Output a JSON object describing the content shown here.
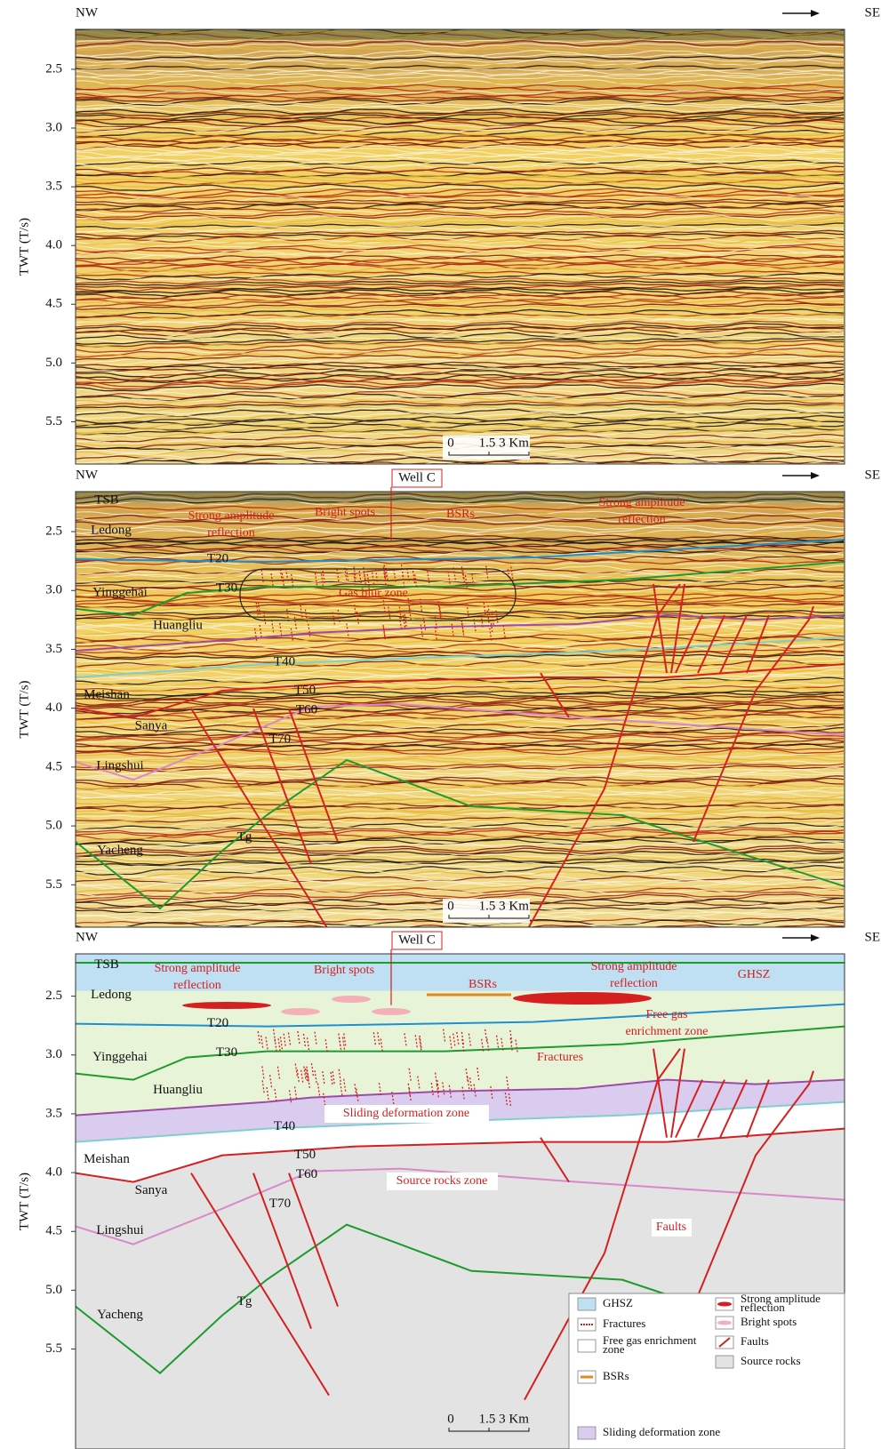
{
  "panels": [
    {
      "left": "NW",
      "right": "SE",
      "ylabel": "TWT (T/s)",
      "ylim": [
        2.16,
        5.86
      ],
      "yticks": [
        2.5,
        {
          "value": 3,
          "label": "3.0"
        },
        3.5,
        {
          "value": 4,
          "label": "4.0"
        },
        4.5,
        {
          "value": 5,
          "label": "5.0"
        },
        5.5
      ],
      "scale_bar": [
        "0",
        "1.5",
        "3 Km"
      ]
    },
    {
      "left": "NW",
      "right": "SE",
      "ylabel": "TWT (T/s)",
      "ylim": [
        2.16,
        5.86
      ],
      "yticks": [
        2.5,
        {
          "value": 3,
          "label": "3.0"
        },
        3.5,
        {
          "value": 4,
          "label": "4.0"
        },
        4.5,
        {
          "value": 5,
          "label": "5.0"
        },
        5.5
      ],
      "scale_bar": [
        "0",
        "1.5",
        "3 Km"
      ],
      "well": "Well C",
      "formations": [
        "Ledong",
        "Yinggehai",
        "Huangliu",
        "Meishan",
        "Sanya",
        "Lingshui",
        "Yacheng"
      ],
      "horizons": [
        "TSB",
        "T20",
        "T30",
        "T40",
        "T50",
        "T60",
        "T70",
        "Tg"
      ],
      "annotations": [
        [
          "Strong amplitude",
          "reflection"
        ],
        [
          "Bright spots"
        ],
        [
          "BSRs"
        ],
        [
          "Strong amplitude",
          "reflection"
        ],
        [
          "Gas blur zone"
        ]
      ]
    },
    {
      "left": "NW",
      "right": "SE",
      "ylabel": "TWT (T/s)",
      "ylim": [
        2.14,
        6.35
      ],
      "yticks": [
        2.5,
        {
          "value": 3,
          "label": "3.0"
        },
        3.5,
        {
          "value": 4,
          "label": "4.0"
        },
        4.5,
        {
          "value": 5,
          "label": "5.0"
        },
        5.5
      ],
      "scale_bar": [
        "0",
        "1.5",
        "3 Km"
      ],
      "well": "Well C",
      "formations": [
        "Ledong",
        "Yinggehai",
        "Huangliu",
        "Meishan",
        "Sanya",
        "Lingshui",
        "Yacheng"
      ],
      "horizons": [
        "TSB",
        "T20",
        "T30",
        "T40",
        "T50",
        "T60",
        "T70",
        "Tg"
      ],
      "annotations": [
        [
          "Strong amplitude",
          "reflection"
        ],
        [
          "Bright spots"
        ],
        [
          "BSRs"
        ],
        [
          "Strong amplitude",
          "reflection"
        ],
        [
          "GHSZ"
        ],
        [
          "Free gas",
          "enrichment zone"
        ],
        [
          "Fractures"
        ],
        [
          "Sliding deformation zone"
        ],
        [
          "Source rocks zone"
        ],
        [
          "Faults"
        ]
      ],
      "legend": [
        [
          "GHSZ"
        ],
        [
          "Fractures"
        ],
        [
          "Free gas enrichment",
          "zone"
        ],
        [
          "BSRs"
        ],
        [
          "Sliding deformation zone"
        ],
        [
          "Strong amplitude",
          "reflection"
        ],
        [
          "Bright spots"
        ],
        [
          "Faults"
        ],
        [
          "Source rocks"
        ]
      ]
    }
  ]
}
